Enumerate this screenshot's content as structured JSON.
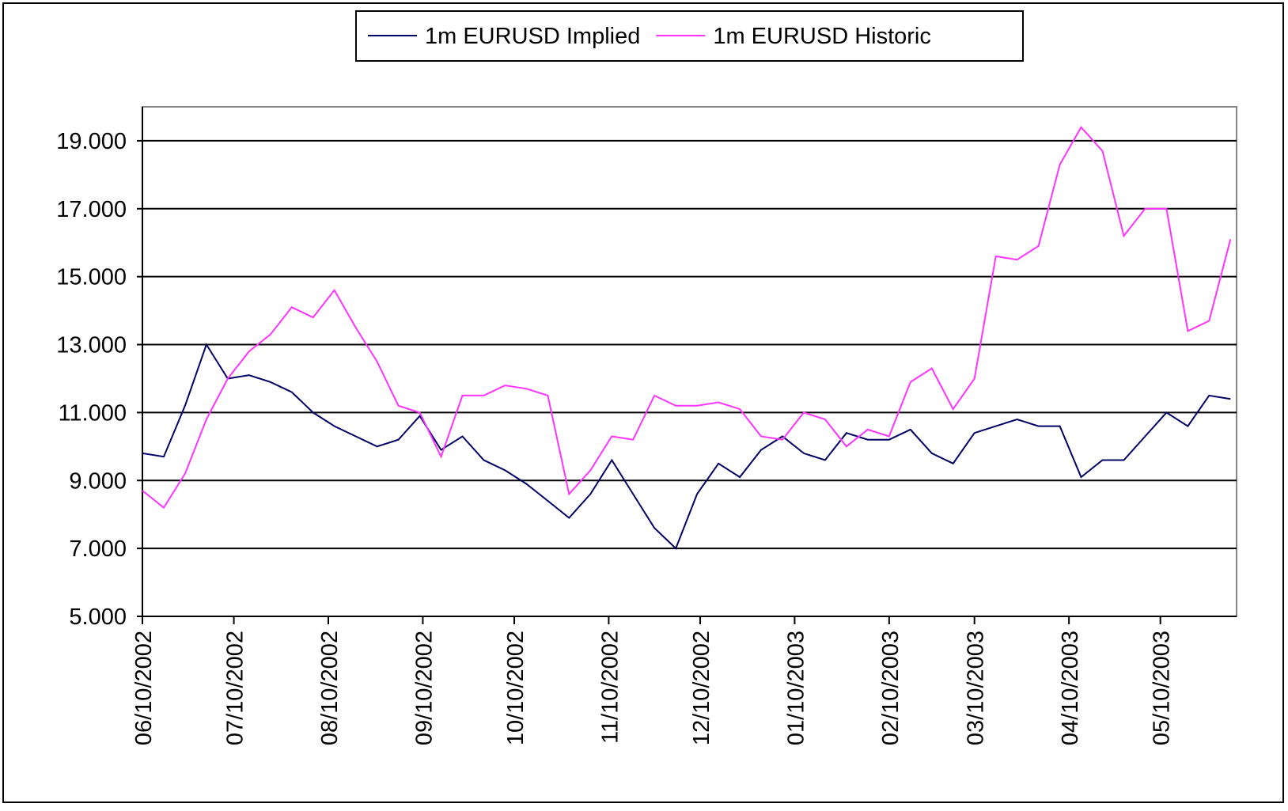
{
  "chart_data": {
    "type": "line",
    "x": [
      "06/10/2002",
      "06/17/2002",
      "06/24/2002",
      "07/01/2002",
      "07/08/2002",
      "07/15/2002",
      "07/22/2002",
      "07/29/2002",
      "08/05/2002",
      "08/12/2002",
      "08/19/2002",
      "08/26/2002",
      "09/02/2002",
      "09/09/2002",
      "09/16/2002",
      "09/23/2002",
      "09/30/2002",
      "10/07/2002",
      "10/14/2002",
      "10/21/2002",
      "10/28/2002",
      "11/04/2002",
      "11/11/2002",
      "11/18/2002",
      "11/25/2002",
      "12/02/2002",
      "12/09/2002",
      "12/16/2002",
      "12/23/2002",
      "12/30/2002",
      "01/06/2003",
      "01/13/2003",
      "01/20/2003",
      "01/27/2003",
      "02/03/2003",
      "02/10/2003",
      "02/17/2003",
      "02/24/2003",
      "03/03/2003",
      "03/10/2003",
      "03/17/2003",
      "03/24/2003",
      "03/31/2003",
      "04/07/2003",
      "04/14/2003",
      "04/21/2003",
      "04/28/2003",
      "05/05/2003",
      "05/12/2003",
      "05/19/2003",
      "05/26/2003",
      "06/02/2003"
    ],
    "series": [
      {
        "name": "1m EURUSD Implied",
        "color": "#000066",
        "values": [
          9.8,
          9.7,
          11.2,
          13.0,
          12.0,
          12.1,
          11.9,
          11.6,
          11.0,
          10.6,
          10.3,
          10.0,
          10.2,
          10.9,
          9.9,
          10.3,
          9.6,
          9.3,
          8.9,
          8.4,
          7.9,
          8.6,
          9.6,
          8.6,
          7.6,
          7.0,
          8.6,
          9.5,
          9.1,
          9.9,
          10.3,
          9.8,
          9.6,
          10.4,
          10.2,
          10.2,
          10.5,
          9.8,
          9.5,
          10.4,
          10.6,
          10.8,
          10.6,
          10.6,
          9.1,
          9.6,
          9.6,
          10.3,
          11.0,
          10.6,
          11.5,
          11.4
        ]
      },
      {
        "name": "1m EURUSD Historic",
        "color": "#ff33ff",
        "values": [
          8.7,
          8.2,
          9.2,
          10.8,
          12.0,
          12.8,
          13.3,
          14.1,
          13.8,
          14.6,
          13.5,
          12.5,
          11.2,
          11.0,
          9.7,
          11.5,
          11.5,
          11.8,
          11.7,
          11.5,
          8.6,
          9.3,
          10.3,
          10.2,
          11.5,
          11.2,
          11.2,
          11.3,
          11.1,
          10.3,
          10.2,
          11.0,
          10.8,
          10.0,
          10.5,
          10.3,
          11.9,
          12.3,
          11.1,
          12.0,
          15.6,
          15.5,
          15.9,
          18.3,
          19.4,
          18.7,
          16.2,
          17.0,
          17.0,
          13.4,
          13.7,
          16.1
        ]
      }
    ],
    "xlim": [
      "06/10/2002",
      "06/04/2003"
    ],
    "xticks": [
      "06/10/2002",
      "07/10/2002",
      "08/10/2002",
      "09/10/2002",
      "10/10/2002",
      "11/10/2002",
      "12/10/2002",
      "01/10/2003",
      "02/10/2003",
      "03/10/2003",
      "04/10/2003",
      "05/10/2003"
    ],
    "ylim": [
      5,
      20
    ],
    "yticks": [
      {
        "value": 5,
        "label": "5.000"
      },
      {
        "value": 7,
        "label": "7.000"
      },
      {
        "value": 9,
        "label": "9.000"
      },
      {
        "value": 11,
        "label": "11.000"
      },
      {
        "value": 13,
        "label": "13.000"
      },
      {
        "value": 15,
        "label": "15.000"
      },
      {
        "value": 17,
        "label": "17.000"
      },
      {
        "value": 19,
        "label": "19.000"
      }
    ],
    "grid": true,
    "legend": "top"
  }
}
